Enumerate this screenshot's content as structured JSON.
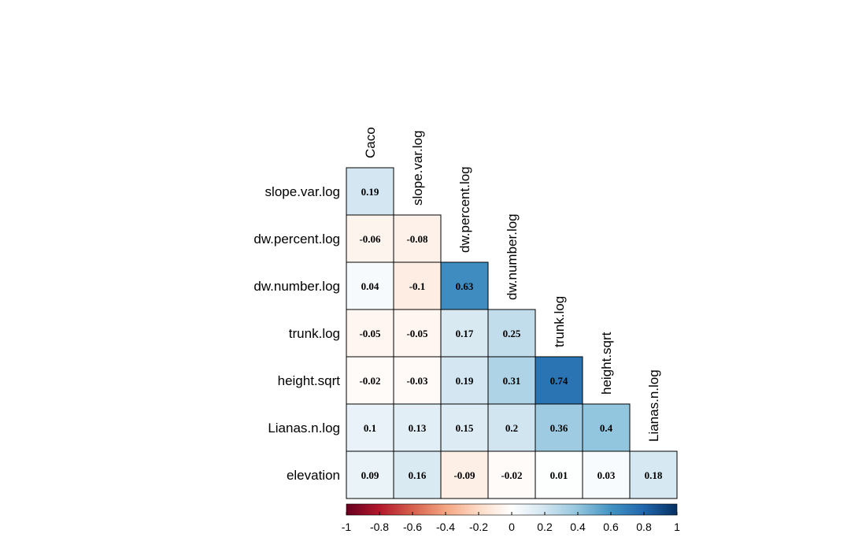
{
  "chart_data": {
    "type": "heatmap",
    "variables": [
      "Caco",
      "slope.var.log",
      "dw.percent.log",
      "dw.number.log",
      "trunk.log",
      "height.sqrt",
      "Lianas.n.log",
      "elevation"
    ],
    "rows": [
      "slope.var.log",
      "dw.percent.log",
      "dw.number.log",
      "trunk.log",
      "height.sqrt",
      "Lianas.n.log",
      "elevation"
    ],
    "columns": [
      "Caco",
      "slope.var.log",
      "dw.percent.log",
      "dw.number.log",
      "trunk.log",
      "height.sqrt",
      "Lianas.n.log"
    ],
    "values": [
      [
        0.19
      ],
      [
        -0.06,
        -0.08
      ],
      [
        0.04,
        -0.1,
        0.63
      ],
      [
        -0.05,
        -0.05,
        0.17,
        0.25
      ],
      [
        -0.02,
        -0.03,
        0.19,
        0.31,
        0.74
      ],
      [
        0.1,
        0.13,
        0.15,
        0.2,
        0.36,
        0.4
      ],
      [
        0.09,
        0.16,
        -0.09,
        -0.02,
        0.01,
        0.03,
        0.18
      ]
    ],
    "value_labels": [
      [
        "0.19"
      ],
      [
        "-0.06",
        "-0.08"
      ],
      [
        "0.04",
        "-0.1",
        "0.63"
      ],
      [
        "-0.05",
        "-0.05",
        "0.17",
        "0.25"
      ],
      [
        "-0.02",
        "-0.03",
        "0.19",
        "0.31",
        "0.74"
      ],
      [
        "0.1",
        "0.13",
        "0.15",
        "0.2",
        "0.36",
        "0.4"
      ],
      [
        "0.09",
        "0.16",
        "-0.09",
        "-0.02",
        "0.01",
        "0.03",
        "0.18"
      ]
    ],
    "layout": "lower-triangle",
    "colorbar": {
      "range": [
        -1,
        1
      ],
      "ticks": [
        "-1",
        "-0.8",
        "-0.6",
        "-0.4",
        "-0.2",
        "0",
        "0.2",
        "0.4",
        "0.6",
        "0.8",
        "1"
      ],
      "position": "bottom",
      "palette": [
        "#67001F",
        "#B2182B",
        "#D6604D",
        "#F4A582",
        "#FDDBC7",
        "#FFFFFF",
        "#D1E5F0",
        "#92C5DE",
        "#4393C3",
        "#2166AC",
        "#053061"
      ]
    }
  }
}
